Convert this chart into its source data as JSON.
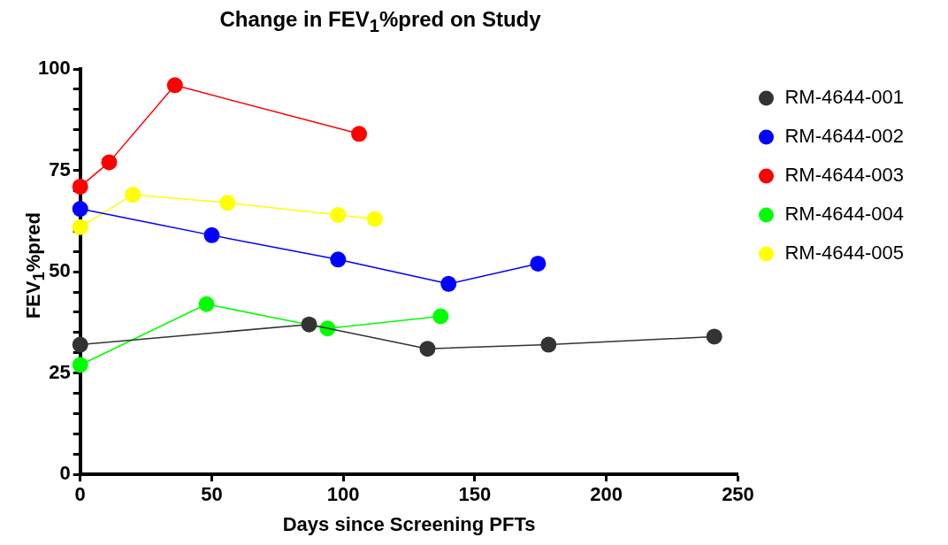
{
  "chart_data": {
    "type": "line",
    "title": "Change in FEV$_{1}$%pred on Study",
    "xlabel": "Days since Screening PFTs",
    "ylabel": "FEV$_{1}$%pred",
    "xlim": [
      0,
      250
    ],
    "xticks": [
      0,
      50,
      100,
      150,
      200,
      250
    ],
    "ylim": [
      0,
      100
    ],
    "yticks": [
      0,
      {
        "value": 5,
        "label": null
      },
      {
        "value": 10,
        "label": null
      },
      {
        "value": 15,
        "label": null
      },
      {
        "value": 20,
        "label": null
      },
      25,
      {
        "value": 30,
        "label": null
      },
      {
        "value": 35,
        "label": null
      },
      {
        "value": 40,
        "label": null
      },
      {
        "value": 45,
        "label": null
      },
      50,
      {
        "value": 55,
        "label": null
      },
      {
        "value": 60,
        "label": null
      },
      {
        "value": 65,
        "label": null
      },
      {
        "value": 70,
        "label": null
      },
      75,
      {
        "value": 80,
        "label": null
      },
      {
        "value": 85,
        "label": null
      },
      {
        "value": 90,
        "label": null
      },
      {
        "value": 95,
        "label": null
      },
      100
    ],
    "grid": false,
    "legend": "right",
    "marker": "circle",
    "line_style": "solid",
    "series": [
      {
        "name": "RM-4644-001",
        "color": "#333333",
        "x": [
          0,
          87,
          132,
          178,
          241
        ],
        "values": [
          32,
          37,
          31,
          32,
          34
        ]
      },
      {
        "name": "RM-4644-002",
        "color": "#0000ff",
        "x": [
          0,
          50,
          98,
          140,
          174
        ],
        "values": [
          65.5,
          59,
          53,
          47,
          52
        ]
      },
      {
        "name": "RM-4644-003",
        "color": "#ff0000",
        "x": [
          0,
          11,
          36,
          106
        ],
        "values": [
          71,
          77,
          96,
          84
        ]
      },
      {
        "name": "RM-4644-004",
        "color": "#00ff00",
        "x": [
          0,
          48,
          94,
          137
        ],
        "values": [
          27,
          42,
          36,
          39
        ]
      },
      {
        "name": "RM-4644-005",
        "color": "#ffff00",
        "x": [
          0,
          20,
          56,
          98,
          112
        ],
        "values": [
          61,
          69,
          67,
          64,
          63
        ]
      }
    ]
  }
}
